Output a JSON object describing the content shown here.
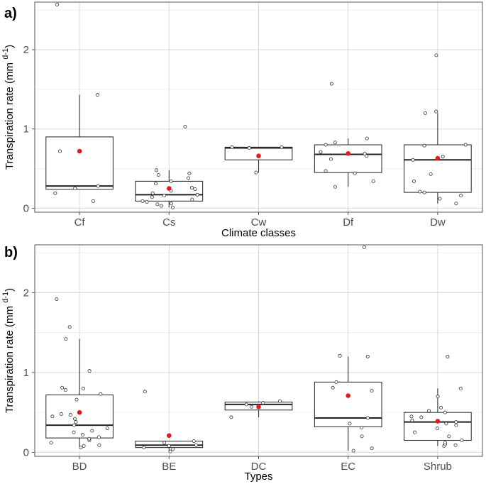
{
  "colors": {
    "mean": "#e41a1c",
    "point": "#333333"
  },
  "chart_data": [
    {
      "type": "box",
      "panel_label": "a)",
      "xlabel": "Climate classes",
      "ylabel": "Transpiration rate (mm d⁻¹)",
      "ylabel_main": "Transpiration rate (mm ",
      "ylabel_sup": "d-1",
      "ylabel_close": ")",
      "ylim": [
        -0.05,
        2.6
      ],
      "yticks": [
        0,
        1,
        2
      ],
      "categories": [
        "Cf",
        "Cs",
        "Cw",
        "Df",
        "Dw"
      ],
      "boxes": [
        {
          "q1": 0.24,
          "median": 0.28,
          "q3": 0.9,
          "low": 0.24,
          "high": 1.43,
          "mean": 0.72,
          "points": [
            0.09,
            0.19,
            0.25,
            0.28,
            0.72,
            1.43,
            2.57
          ]
        },
        {
          "q1": 0.09,
          "median": 0.17,
          "q3": 0.34,
          "low": 0.01,
          "high": 0.48,
          "mean": 0.25,
          "points": [
            0.01,
            0.03,
            0.05,
            0.06,
            0.08,
            0.09,
            0.11,
            0.14,
            0.16,
            0.17,
            0.19,
            0.22,
            0.24,
            0.26,
            0.31,
            0.34,
            0.38,
            0.42,
            0.44,
            0.48,
            1.03
          ]
        },
        {
          "q1": 0.61,
          "median": 0.76,
          "q3": 0.77,
          "low": 0.45,
          "high": 0.77,
          "mean": 0.66,
          "points": [
            0.45,
            0.76,
            0.77,
            0.77
          ]
        },
        {
          "q1": 0.45,
          "median": 0.68,
          "q3": 0.8,
          "low": 0.27,
          "high": 0.88,
          "mean": 0.69,
          "points": [
            0.27,
            0.34,
            0.44,
            0.47,
            0.62,
            0.66,
            0.69,
            0.71,
            0.8,
            0.83,
            0.88,
            1.57
          ]
        },
        {
          "q1": 0.2,
          "median": 0.61,
          "q3": 0.8,
          "low": 0.06,
          "high": 1.2,
          "mean": 0.63,
          "points": [
            0.06,
            0.12,
            0.16,
            0.2,
            0.21,
            0.34,
            0.43,
            0.61,
            0.65,
            0.79,
            0.8,
            1.2,
            1.22,
            1.93
          ]
        }
      ]
    },
    {
      "type": "box",
      "panel_label": "b)",
      "xlabel": "Types",
      "ylabel": "Transpiration rate (mm d⁻¹)",
      "ylabel_main": "Transpiration rate (mm ",
      "ylabel_sup": "d-1",
      "ylabel_close": ")",
      "ylim": [
        -0.05,
        2.6
      ],
      "yticks": [
        0,
        1,
        2
      ],
      "categories": [
        "BD",
        "BE",
        "DC",
        "EC",
        "Shrub"
      ],
      "boxes": [
        {
          "q1": 0.18,
          "median": 0.34,
          "q3": 0.72,
          "low": 0.06,
          "high": 1.42,
          "mean": 0.5,
          "points": [
            0.06,
            0.08,
            0.09,
            0.12,
            0.15,
            0.17,
            0.19,
            0.22,
            0.25,
            0.27,
            0.3,
            0.34,
            0.38,
            0.42,
            0.45,
            0.47,
            0.48,
            0.66,
            0.73,
            0.78,
            0.8,
            0.81,
            1.02,
            1.42,
            1.57,
            1.92
          ]
        },
        {
          "q1": 0.06,
          "median": 0.09,
          "q3": 0.14,
          "low": 0.01,
          "high": 0.14,
          "mean": 0.21,
          "points": [
            0.01,
            0.04,
            0.06,
            0.08,
            0.09,
            0.12,
            0.14,
            0.76
          ]
        },
        {
          "q1": 0.53,
          "median": 0.6,
          "q3": 0.63,
          "low": 0.44,
          "high": 0.64,
          "mean": 0.57,
          "points": [
            0.44,
            0.57,
            0.6,
            0.62,
            0.64
          ]
        },
        {
          "q1": 0.32,
          "median": 0.43,
          "q3": 0.88,
          "low": 0.02,
          "high": 1.2,
          "mean": 0.71,
          "points": [
            0.02,
            0.05,
            0.2,
            0.31,
            0.36,
            0.43,
            0.77,
            0.81,
            0.88,
            1.2,
            1.21,
            2.57
          ]
        },
        {
          "q1": 0.15,
          "median": 0.38,
          "q3": 0.5,
          "low": 0.08,
          "high": 0.8,
          "mean": 0.39,
          "points": [
            0.08,
            0.09,
            0.1,
            0.12,
            0.15,
            0.2,
            0.25,
            0.3,
            0.34,
            0.36,
            0.38,
            0.4,
            0.44,
            0.45,
            0.5,
            0.52,
            0.56,
            0.7,
            0.8,
            1.2
          ]
        }
      ]
    }
  ]
}
